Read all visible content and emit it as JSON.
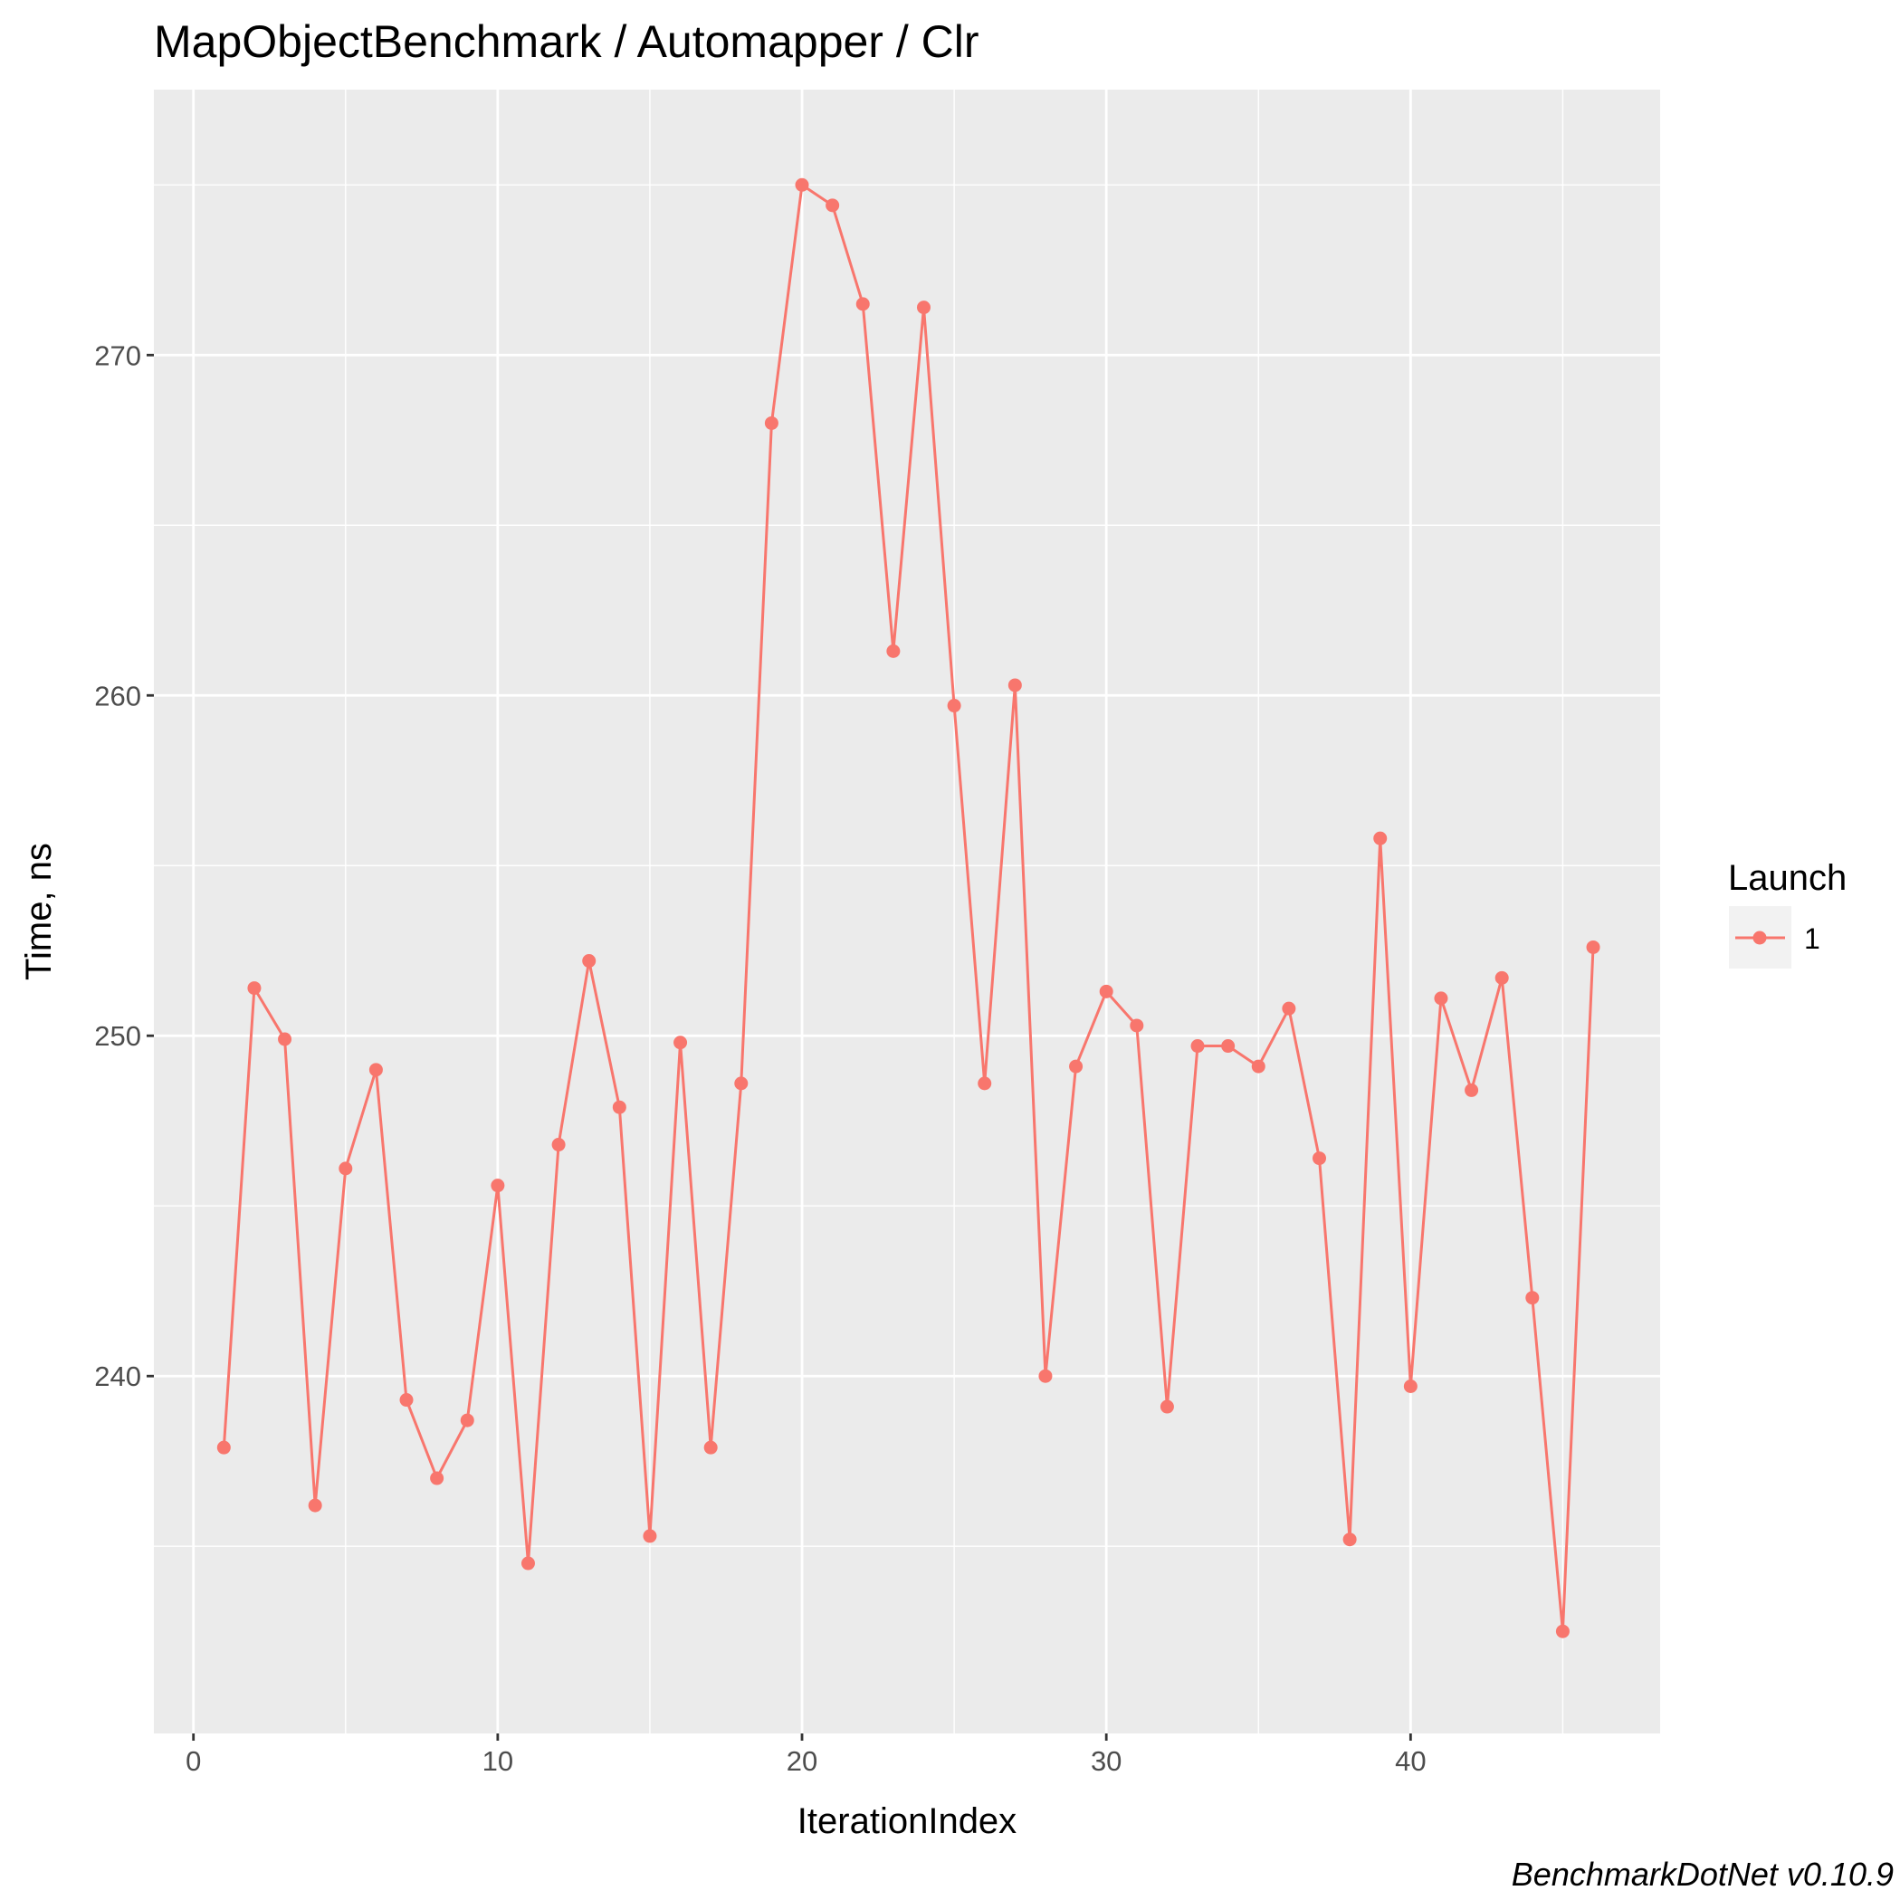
{
  "chart_data": {
    "type": "line",
    "title": "MapObjectBenchmark / Automapper / Clr",
    "xlabel": "IterationIndex",
    "ylabel": "Time, ns",
    "caption": "BenchmarkDotNet v0.10.9",
    "xlim": [
      -1.3,
      48.2
    ],
    "ylim": [
      229.5,
      277.8
    ],
    "x_ticks": [
      0,
      10,
      20,
      30,
      40
    ],
    "y_ticks": [
      240,
      250,
      260,
      270
    ],
    "grid": true,
    "legend": {
      "title": "Launch",
      "position": "right"
    },
    "colors": {
      "series": "#f8766d",
      "panel": "#ebebeb",
      "grid": "#ffffff",
      "legend_key": "#f2f2f2"
    },
    "series": [
      {
        "name": "1",
        "x": [
          1,
          2,
          3,
          4,
          5,
          6,
          7,
          8,
          9,
          10,
          11,
          12,
          13,
          14,
          15,
          16,
          17,
          18,
          19,
          20,
          21,
          22,
          23,
          24,
          25,
          26,
          27,
          28,
          29,
          30,
          31,
          32,
          33,
          34,
          35,
          36,
          37,
          38,
          39,
          40,
          41,
          42,
          43,
          44,
          45,
          46
        ],
        "values": [
          237.9,
          251.4,
          249.9,
          236.2,
          246.1,
          249.0,
          239.3,
          237.0,
          238.7,
          245.6,
          234.5,
          246.8,
          252.2,
          247.9,
          235.3,
          249.8,
          237.9,
          248.6,
          268.0,
          275.0,
          274.4,
          271.5,
          261.3,
          271.4,
          259.7,
          248.6,
          260.3,
          240.0,
          249.1,
          251.3,
          250.3,
          239.1,
          249.7,
          249.7,
          249.1,
          250.8,
          246.4,
          235.2,
          255.8,
          239.7,
          251.1,
          248.4,
          251.7,
          242.3,
          232.5,
          252.6
        ]
      }
    ]
  }
}
